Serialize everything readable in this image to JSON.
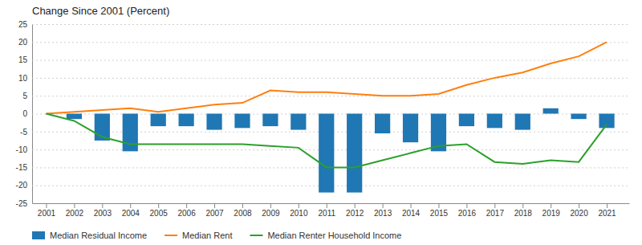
{
  "chart_data": {
    "type": "bar",
    "title": "Change Since 2001 (Percent)",
    "x": [
      2001,
      2002,
      2003,
      2004,
      2005,
      2006,
      2007,
      2008,
      2009,
      2010,
      2011,
      2012,
      2013,
      2014,
      2015,
      2016,
      2017,
      2018,
      2019,
      2020,
      2021
    ],
    "series": [
      {
        "name": "Median Residual Income",
        "type": "bar",
        "values": [
          0,
          -1.5,
          -7.5,
          -10.5,
          -3.5,
          -3.5,
          -4.5,
          -4.0,
          -3.5,
          -4.5,
          -22.0,
          -22.0,
          -5.5,
          -8.0,
          -10.5,
          -3.5,
          -4.0,
          -4.5,
          1.5,
          -1.5,
          -4.0
        ]
      },
      {
        "name": "Median Rent",
        "type": "line",
        "values": [
          0,
          0.5,
          1.0,
          1.5,
          0.5,
          1.5,
          2.5,
          3.0,
          6.5,
          6.0,
          6.0,
          5.5,
          5.0,
          5.0,
          5.5,
          8.0,
          10.0,
          11.5,
          14.0,
          16.0,
          20.0
        ]
      },
      {
        "name": "Median Renter Household Income",
        "type": "line",
        "values": [
          0,
          -2.0,
          -6.5,
          -8.5,
          -8.5,
          -8.5,
          -8.5,
          -8.5,
          -9.0,
          -9.5,
          -15.0,
          -15.0,
          -13.0,
          -11.0,
          -9.0,
          -8.5,
          -13.5,
          -14.0,
          -13.0,
          -13.5,
          -3.0
        ]
      }
    ],
    "xlim": [
      2000.5,
      2021.8
    ],
    "xticks": [
      2001,
      2002,
      2003,
      2004,
      2005,
      2006,
      2007,
      2008,
      2009,
      2010,
      2011,
      2012,
      2013,
      2014,
      2015,
      2016,
      2017,
      2018,
      2019,
      2020,
      2021
    ],
    "ylim": [
      -25,
      25
    ],
    "yticks": [
      -25,
      -20,
      -15,
      -10,
      -5,
      0,
      5,
      10,
      15,
      20,
      25
    ],
    "grid": true,
    "legend": "bottom"
  }
}
